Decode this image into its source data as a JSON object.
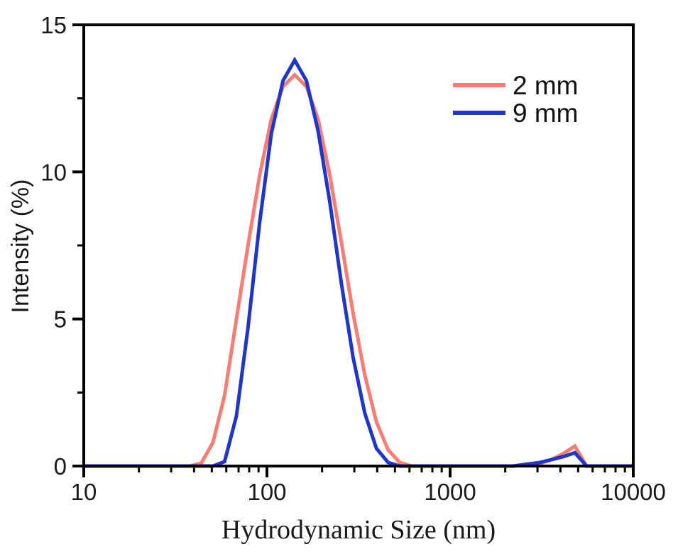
{
  "figure": {
    "background_color": "#ffffff",
    "axis_color": "#000000",
    "text_color": "#1a1a1a"
  },
  "chart_data": {
    "type": "line",
    "title": "",
    "grid": false,
    "x_axis": {
      "label": "Hydrodynamic Size (nm)",
      "scale": "log",
      "min": 10,
      "max": 10000,
      "major_ticks": [
        10,
        100,
        1000,
        10000
      ],
      "major_tick_labels": [
        "10",
        "100",
        "1000",
        "10000"
      ]
    },
    "y_axis": {
      "label": "Intensity (%)",
      "scale": "linear",
      "min": 0,
      "max": 15,
      "major_ticks": [
        0,
        5,
        10,
        15
      ],
      "major_tick_labels": [
        "0",
        "5",
        "10",
        "15"
      ],
      "minor_ticks": [
        2.5,
        7.5,
        12.5
      ]
    },
    "legend": {
      "position": "top-right",
      "entries": [
        {
          "label": "2 mm",
          "color": "#f97d74"
        },
        {
          "label": "9 mm",
          "color": "#1f36c8"
        }
      ]
    },
    "x": [
      10,
      11.6,
      13.4,
      15.6,
      18.1,
      21,
      24.4,
      28.2,
      32.7,
      37.8,
      43.8,
      50.7,
      58.7,
      68.1,
      78.8,
      91.3,
      105.7,
      122.4,
      141.8,
      164.2,
      190.1,
      220.2,
      255,
      295.3,
      342,
      396.1,
      458.7,
      531.2,
      615.1,
      712.4,
      1000,
      1500,
      2200,
      3091,
      3580,
      4145,
      4801,
      5560,
      6439,
      10000
    ],
    "series": [
      {
        "name": "2 mm",
        "color": "#f97d74",
        "peak_nm": 141.8,
        "peak_intensity": 13.3,
        "y": [
          0,
          0,
          0,
          0,
          0,
          0,
          0,
          0,
          0,
          0,
          0.1,
          0.8,
          2.4,
          5.0,
          7.5,
          9.9,
          11.8,
          12.9,
          13.3,
          12.9,
          11.8,
          9.9,
          7.6,
          5.2,
          3.1,
          1.5,
          0.55,
          0.12,
          0,
          0,
          0,
          0,
          0,
          0.08,
          0.22,
          0.42,
          0.68,
          0,
          0,
          0
        ]
      },
      {
        "name": "9 mm",
        "color": "#1f36c8",
        "peak_nm": 141.8,
        "peak_intensity": 13.8,
        "y": [
          0,
          0,
          0,
          0,
          0,
          0,
          0,
          0,
          0,
          0,
          0,
          0,
          0.15,
          1.7,
          4.7,
          8.3,
          11.3,
          13.1,
          13.8,
          13.1,
          11.4,
          9.0,
          6.2,
          3.7,
          1.8,
          0.6,
          0.12,
          0,
          0,
          0,
          0,
          0,
          0,
          0.12,
          0.22,
          0.32,
          0.45,
          0,
          0,
          0
        ]
      }
    ]
  }
}
